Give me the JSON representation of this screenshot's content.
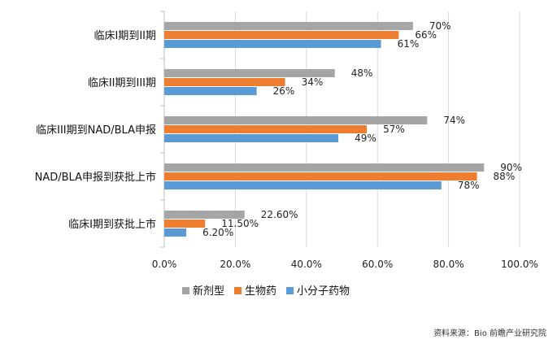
{
  "chart_data": {
    "type": "bar",
    "orientation": "horizontal",
    "categories": [
      "临床I期到II期",
      "临床II期到III期",
      "临床III期到NAD/BLA申报",
      "NAD/BLA申报到获批上市",
      "临床I期到获批上市"
    ],
    "series": [
      {
        "name": "新剂型",
        "color": "#a5a5a5",
        "values": [
          70,
          48,
          74,
          90,
          22.6
        ],
        "labels": [
          "70%",
          "48%",
          "74%",
          "90%",
          "22.60%"
        ]
      },
      {
        "name": "生物药",
        "color": "#ed7d31",
        "values": [
          66,
          34,
          57,
          88,
          11.5
        ],
        "labels": [
          "66%",
          "34%",
          "57%",
          "88%",
          "11.50%"
        ]
      },
      {
        "name": "小分子药物",
        "color": "#5b9bd5",
        "values": [
          61,
          26,
          49,
          78,
          6.2
        ],
        "labels": [
          "61%",
          "26%",
          "49%",
          "78%",
          "6.20%"
        ]
      }
    ],
    "xlim": [
      0,
      100
    ],
    "xticks": [
      0,
      20,
      40,
      60,
      80,
      100
    ],
    "xtick_labels": [
      "0.0%",
      "20.0%",
      "40.0%",
      "60.0%",
      "80.0%",
      "100.0%"
    ],
    "grid": "vertical",
    "legend_position": "bottom"
  },
  "source": "资料来源：Bio 前瞻产业研究院"
}
